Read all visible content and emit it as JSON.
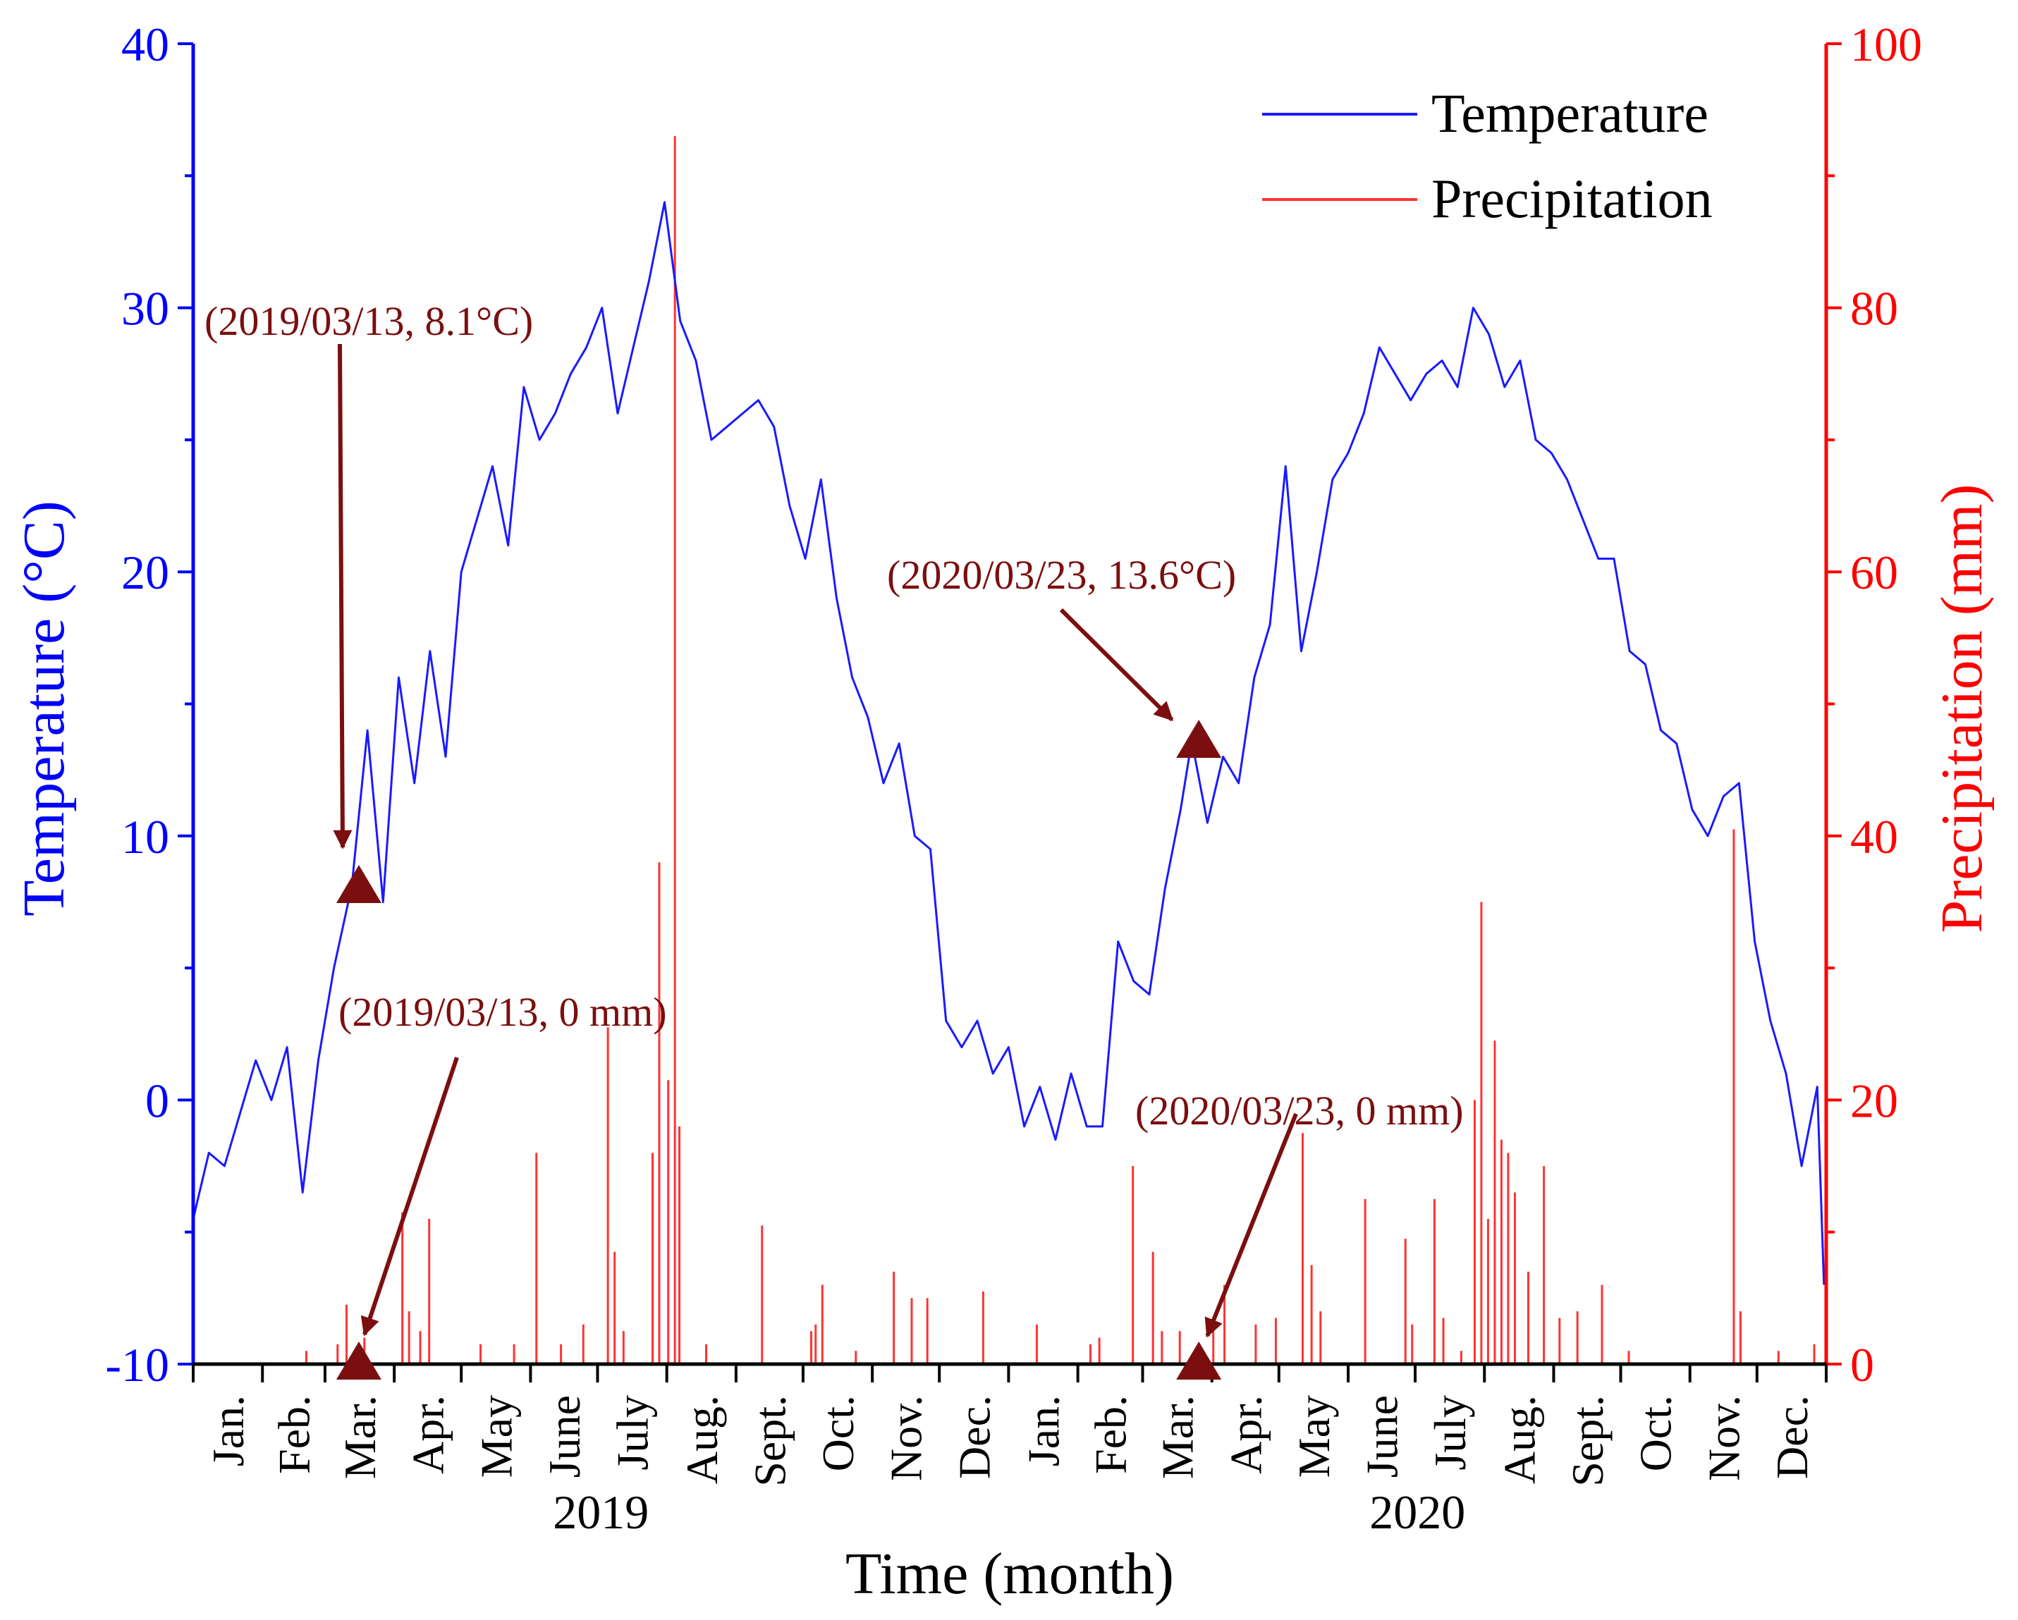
{
  "chart_data": {
    "type": "line",
    "title": "",
    "xlabel": "Time (month)",
    "ylabel_left": "Temperature (°C)",
    "ylabel_right": "Precipitation (mm)",
    "ylim_left": [
      -10,
      40
    ],
    "ylim_right": [
      0,
      100
    ],
    "yticks_left": [
      "-10",
      "0",
      "10",
      "20",
      "30",
      "40"
    ],
    "yticks_right": [
      "0",
      "20",
      "40",
      "60",
      "80",
      "100"
    ],
    "x_range": [
      "2019-01-01",
      "2020-12-31"
    ],
    "month_labels": [
      "Jan.",
      "Feb.",
      "Mar.",
      "Apr.",
      "May",
      "June",
      "July",
      "Aug.",
      "Sept.",
      "Oct.",
      "Nov.",
      "Dec.",
      "Jan.",
      "Feb.",
      "Mar.",
      "Apr.",
      "May",
      "June",
      "July",
      "Aug.",
      "Sept.",
      "Oct.",
      "Nov.",
      "Dec."
    ],
    "year_labels": [
      "2019",
      "2020"
    ],
    "grid": false,
    "legend_position": "top-right",
    "colors": {
      "temperature": "#1a1aff",
      "precipitation": "#ff3333",
      "annotation": "#7b0f0f",
      "axis_left": "#0000ff",
      "axis_right": "#ff0000"
    },
    "series": [
      {
        "name": "Temperature",
        "axis": "left",
        "unit": "°C",
        "points": [
          [
            "2019-01-01",
            -4.5
          ],
          [
            "2019-01-08",
            -2.0
          ],
          [
            "2019-01-15",
            -2.5
          ],
          [
            "2019-01-22",
            -0.5
          ],
          [
            "2019-01-29",
            1.5
          ],
          [
            "2019-02-05",
            0.0
          ],
          [
            "2019-02-12",
            2.0
          ],
          [
            "2019-02-19",
            -3.5
          ],
          [
            "2019-02-26",
            1.5
          ],
          [
            "2019-03-05",
            5.0
          ],
          [
            "2019-03-13",
            8.1
          ],
          [
            "2019-03-20",
            14.0
          ],
          [
            "2019-03-27",
            7.5
          ],
          [
            "2019-04-03",
            16.0
          ],
          [
            "2019-04-10",
            12.0
          ],
          [
            "2019-04-17",
            17.0
          ],
          [
            "2019-04-24",
            13.0
          ],
          [
            "2019-05-01",
            20.0
          ],
          [
            "2019-05-08",
            22.0
          ],
          [
            "2019-05-15",
            24.0
          ],
          [
            "2019-05-22",
            21.0
          ],
          [
            "2019-05-29",
            27.0
          ],
          [
            "2019-06-05",
            25.0
          ],
          [
            "2019-06-12",
            26.0
          ],
          [
            "2019-06-19",
            27.5
          ],
          [
            "2019-06-26",
            28.5
          ],
          [
            "2019-07-03",
            30.0
          ],
          [
            "2019-07-10",
            26.0
          ],
          [
            "2019-07-17",
            28.5
          ],
          [
            "2019-07-24",
            31.0
          ],
          [
            "2019-07-31",
            34.0
          ],
          [
            "2019-08-07",
            29.5
          ],
          [
            "2019-08-14",
            28.0
          ],
          [
            "2019-08-21",
            25.0
          ],
          [
            "2019-08-28",
            25.5
          ],
          [
            "2019-09-04",
            26.0
          ],
          [
            "2019-09-11",
            26.5
          ],
          [
            "2019-09-18",
            25.5
          ],
          [
            "2019-09-25",
            22.5
          ],
          [
            "2019-10-02",
            20.5
          ],
          [
            "2019-10-09",
            23.5
          ],
          [
            "2019-10-16",
            19.0
          ],
          [
            "2019-10-23",
            16.0
          ],
          [
            "2019-10-30",
            14.5
          ],
          [
            "2019-11-06",
            12.0
          ],
          [
            "2019-11-13",
            13.5
          ],
          [
            "2019-11-20",
            10.0
          ],
          [
            "2019-11-27",
            9.5
          ],
          [
            "2019-12-04",
            3.0
          ],
          [
            "2019-12-11",
            2.0
          ],
          [
            "2019-12-18",
            3.0
          ],
          [
            "2019-12-25",
            1.0
          ],
          [
            "2020-01-01",
            2.0
          ],
          [
            "2020-01-08",
            -1.0
          ],
          [
            "2020-01-15",
            0.5
          ],
          [
            "2020-01-22",
            -1.5
          ],
          [
            "2020-01-29",
            1.0
          ],
          [
            "2020-02-05",
            -1.0
          ],
          [
            "2020-02-12",
            -1.0
          ],
          [
            "2020-02-19",
            6.0
          ],
          [
            "2020-02-26",
            4.5
          ],
          [
            "2020-03-04",
            4.0
          ],
          [
            "2020-03-11",
            8.0
          ],
          [
            "2020-03-18",
            11.0
          ],
          [
            "2020-03-23",
            13.6
          ],
          [
            "2020-03-30",
            10.5
          ],
          [
            "2020-04-06",
            13.0
          ],
          [
            "2020-04-13",
            12.0
          ],
          [
            "2020-04-20",
            16.0
          ],
          [
            "2020-04-27",
            18.0
          ],
          [
            "2020-05-04",
            24.0
          ],
          [
            "2020-05-11",
            17.0
          ],
          [
            "2020-05-18",
            20.0
          ],
          [
            "2020-05-25",
            23.5
          ],
          [
            "2020-06-01",
            24.5
          ],
          [
            "2020-06-08",
            26.0
          ],
          [
            "2020-06-15",
            28.5
          ],
          [
            "2020-06-22",
            27.5
          ],
          [
            "2020-06-29",
            26.5
          ],
          [
            "2020-07-06",
            27.5
          ],
          [
            "2020-07-13",
            28.0
          ],
          [
            "2020-07-20",
            27.0
          ],
          [
            "2020-07-27",
            30.0
          ],
          [
            "2020-08-03",
            29.0
          ],
          [
            "2020-08-10",
            27.0
          ],
          [
            "2020-08-17",
            28.0
          ],
          [
            "2020-08-24",
            25.0
          ],
          [
            "2020-08-31",
            24.5
          ],
          [
            "2020-09-07",
            23.5
          ],
          [
            "2020-09-14",
            22.0
          ],
          [
            "2020-09-21",
            20.5
          ],
          [
            "2020-09-28",
            20.5
          ],
          [
            "2020-10-05",
            17.0
          ],
          [
            "2020-10-12",
            16.5
          ],
          [
            "2020-10-19",
            14.0
          ],
          [
            "2020-10-26",
            13.5
          ],
          [
            "2020-11-02",
            11.0
          ],
          [
            "2020-11-09",
            10.0
          ],
          [
            "2020-11-16",
            11.5
          ],
          [
            "2020-11-23",
            12.0
          ],
          [
            "2020-11-30",
            6.0
          ],
          [
            "2020-12-07",
            3.0
          ],
          [
            "2020-12-14",
            1.0
          ],
          [
            "2020-12-21",
            -2.5
          ],
          [
            "2020-12-28",
            0.5
          ],
          [
            "2020-12-31",
            -7.0
          ]
        ]
      },
      {
        "name": "Precipitation",
        "axis": "right",
        "unit": "mm",
        "points": [
          [
            "2019-02-20",
            1.0
          ],
          [
            "2019-03-06",
            1.5
          ],
          [
            "2019-03-10",
            4.5
          ],
          [
            "2019-03-18",
            2.0
          ],
          [
            "2019-04-04",
            11.5
          ],
          [
            "2019-04-07",
            4.0
          ],
          [
            "2019-04-12",
            2.5
          ],
          [
            "2019-04-16",
            11.0
          ],
          [
            "2019-05-09",
            1.5
          ],
          [
            "2019-05-24",
            1.5
          ],
          [
            "2019-06-03",
            16.0
          ],
          [
            "2019-06-14",
            1.5
          ],
          [
            "2019-06-24",
            3.0
          ],
          [
            "2019-07-05",
            25.5
          ],
          [
            "2019-07-08",
            8.5
          ],
          [
            "2019-07-12",
            2.5
          ],
          [
            "2019-07-25",
            16.0
          ],
          [
            "2019-07-28",
            38.0
          ],
          [
            "2019-08-01",
            21.5
          ],
          [
            "2019-08-04",
            93.0
          ],
          [
            "2019-08-06",
            18.0
          ],
          [
            "2019-08-18",
            1.5
          ],
          [
            "2019-09-12",
            10.5
          ],
          [
            "2019-10-04",
            2.5
          ],
          [
            "2019-10-06",
            3.0
          ],
          [
            "2019-10-09",
            6.0
          ],
          [
            "2019-10-24",
            1.0
          ],
          [
            "2019-11-10",
            7.0
          ],
          [
            "2019-11-18",
            5.0
          ],
          [
            "2019-11-25",
            5.0
          ],
          [
            "2019-12-20",
            5.5
          ],
          [
            "2020-01-13",
            3.0
          ],
          [
            "2020-02-06",
            1.5
          ],
          [
            "2020-02-10",
            2.0
          ],
          [
            "2020-02-25",
            15.0
          ],
          [
            "2020-03-05",
            8.5
          ],
          [
            "2020-03-09",
            2.5
          ],
          [
            "2020-03-17",
            2.5
          ],
          [
            "2020-04-01",
            3.5
          ],
          [
            "2020-04-06",
            6.0
          ],
          [
            "2020-04-20",
            3.0
          ],
          [
            "2020-04-29",
            3.5
          ],
          [
            "2020-05-11",
            17.5
          ],
          [
            "2020-05-15",
            7.5
          ],
          [
            "2020-05-19",
            4.0
          ],
          [
            "2020-06-08",
            12.5
          ],
          [
            "2020-06-26",
            9.5
          ],
          [
            "2020-06-29",
            3.0
          ],
          [
            "2020-07-09",
            12.5
          ],
          [
            "2020-07-13",
            3.5
          ],
          [
            "2020-07-21",
            1.0
          ],
          [
            "2020-07-27",
            20.0
          ],
          [
            "2020-07-30",
            35.0
          ],
          [
            "2020-08-02",
            11.0
          ],
          [
            "2020-08-05",
            24.5
          ],
          [
            "2020-08-08",
            17.0
          ],
          [
            "2020-08-11",
            16.0
          ],
          [
            "2020-08-14",
            13.0
          ],
          [
            "2020-08-20",
            7.0
          ],
          [
            "2020-08-27",
            15.0
          ],
          [
            "2020-09-03",
            3.5
          ],
          [
            "2020-09-11",
            4.0
          ],
          [
            "2020-09-22",
            6.0
          ],
          [
            "2020-10-04",
            1.0
          ],
          [
            "2020-11-20",
            40.5
          ],
          [
            "2020-11-23",
            4.0
          ],
          [
            "2020-12-10",
            1.0
          ],
          [
            "2020-12-26",
            1.5
          ]
        ]
      }
    ],
    "annotations": [
      {
        "text": "(2019/03/13, 8.1°C)",
        "date": "2019-03-13",
        "value": 8.1,
        "axis": "left"
      },
      {
        "text": "(2019/03/13, 0 mm)",
        "date": "2019-03-13",
        "value": 0,
        "axis": "right"
      },
      {
        "text": "(2020/03/23, 13.6°C)",
        "date": "2020-03-23",
        "value": 13.6,
        "axis": "left"
      },
      {
        "text": "(2020/03/23, 0 mm)",
        "date": "2020-03-23",
        "value": 0,
        "axis": "right"
      }
    ]
  }
}
